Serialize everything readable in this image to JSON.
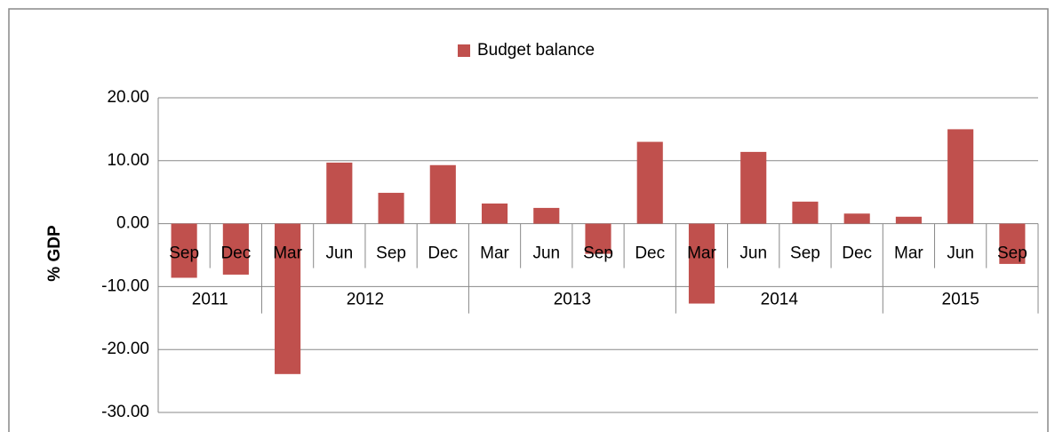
{
  "chart_data": {
    "type": "bar",
    "y_label": "% GDP",
    "categories": [
      "Sep",
      "Dec",
      "Mar",
      "Jun",
      "Sep",
      "Dec",
      "Mar",
      "Jun",
      "Sep",
      "Dec",
      "Mar",
      "Jun",
      "Sep",
      "Dec",
      "Mar",
      "Jun",
      "Sep"
    ],
    "group_labels": [
      "2011",
      null,
      "2012",
      null,
      null,
      null,
      "2013",
      null,
      null,
      null,
      "2014",
      null,
      null,
      null,
      "2015",
      null,
      null
    ],
    "series": [
      {
        "name": "Budget balance",
        "color": "#c0504d",
        "values": [
          -8.6,
          -8.1,
          -23.9,
          9.7,
          4.9,
          9.3,
          3.2,
          2.5,
          -4.8,
          13.0,
          -12.7,
          11.4,
          3.5,
          1.6,
          1.1,
          15.0,
          -6.4
        ]
      }
    ],
    "ylim": [
      -30,
      20
    ],
    "yticks": [
      {
        "value": -30,
        "label": "-30.00"
      },
      {
        "value": -20,
        "label": "-20.00"
      },
      {
        "value": -10,
        "label": "-10.00"
      },
      {
        "value": 0,
        "label": "0.00"
      },
      {
        "value": 10,
        "label": "10.00"
      },
      {
        "value": 20,
        "label": "20.00"
      }
    ],
    "grid": true,
    "legend": "top"
  }
}
